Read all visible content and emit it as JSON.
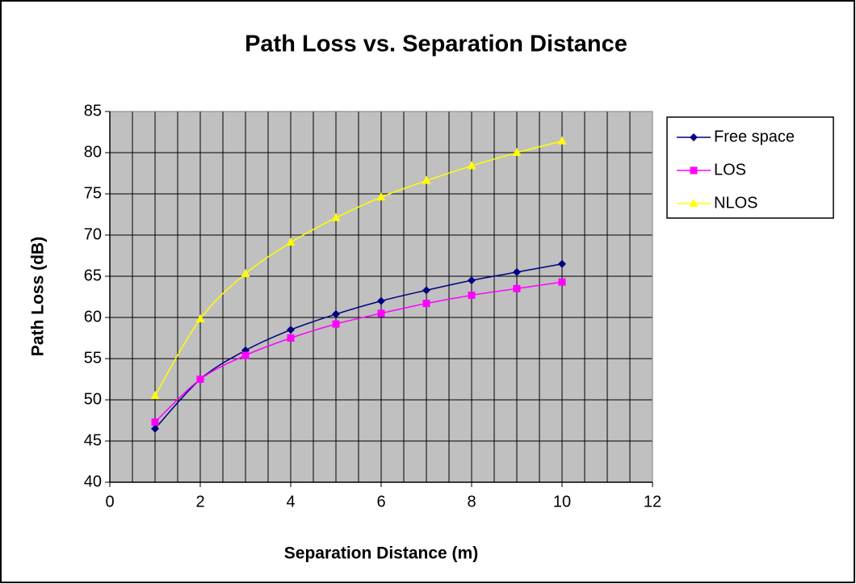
{
  "chart_data": {
    "type": "line",
    "title": "Path Loss vs. Separation Distance",
    "x_label": "Separation Distance (m)",
    "y_label": "Path Loss (dB)",
    "x": [
      1,
      2,
      3,
      4,
      5,
      6,
      7,
      8,
      9,
      10
    ],
    "series": [
      {
        "name": "Free space",
        "color": "#000080",
        "marker": "diamond",
        "values": [
          46.5,
          52.5,
          56,
          58.5,
          60.4,
          62,
          63.3,
          64.5,
          65.5,
          66.5
        ]
      },
      {
        "name": "LOS",
        "color": "#ff00ff",
        "marker": "square",
        "values": [
          47.3,
          52.5,
          55.4,
          57.5,
          59.2,
          60.5,
          61.7,
          62.7,
          63.5,
          64.3
        ]
      },
      {
        "name": "NLOS",
        "color": "#ffff00",
        "marker": "triangle",
        "values": [
          50.5,
          59.8,
          65.3,
          69.1,
          72.1,
          74.6,
          76.6,
          78.4,
          80,
          81.4
        ]
      }
    ],
    "xlim": [
      0,
      12
    ],
    "xticks": [
      0,
      2,
      4,
      6,
      8,
      10,
      12
    ],
    "ylim": [
      40,
      85
    ],
    "yticks": [
      40,
      45,
      50,
      55,
      60,
      65,
      70,
      75,
      80,
      85
    ],
    "grid": true,
    "x_minor_divisions": 4,
    "smooth": true,
    "plot_background": "#c0c0c0",
    "legend": "right"
  }
}
